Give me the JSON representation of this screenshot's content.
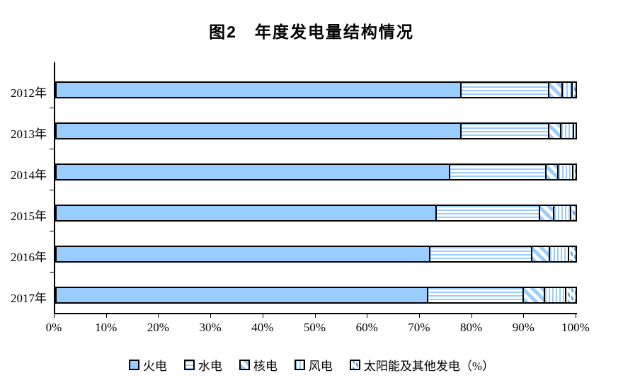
{
  "title": "图2　年度发电量结构情况",
  "colors": {
    "bar_blue": "#99CCFF",
    "border": "#000000",
    "background": "#FFFFFF"
  },
  "chart_data": {
    "type": "bar",
    "orientation": "horizontal",
    "stacked": true,
    "title": "图2　年度发电量结构情况",
    "xlabel": "",
    "ylabel": "",
    "xlim": [
      0,
      100
    ],
    "grid": false,
    "legend_position": "bottom",
    "categories": [
      "2012年",
      "2013年",
      "2014年",
      "2015年",
      "2016年",
      "2017年"
    ],
    "x_ticks": [
      "0%",
      "10%",
      "20%",
      "30%",
      "40%",
      "50%",
      "60%",
      "70%",
      "80%",
      "90%",
      "100%"
    ],
    "series": [
      {
        "name": "火电",
        "pattern": "solid",
        "values": [
          78.0,
          78.0,
          75.8,
          73.3,
          72.0,
          71.6
        ]
      },
      {
        "name": "水电",
        "pattern": "hstripe",
        "values": [
          17.0,
          16.9,
          18.6,
          19.9,
          19.7,
          18.4
        ]
      },
      {
        "name": "核电",
        "pattern": "diag",
        "values": [
          2.5,
          2.4,
          2.3,
          2.7,
          3.4,
          4.1
        ]
      },
      {
        "name": "风电",
        "pattern": "vstripe",
        "values": [
          2.0,
          2.4,
          2.9,
          3.3,
          3.7,
          4.1
        ]
      },
      {
        "name": "太阳能及其他发电（%）",
        "pattern": "diagdash",
        "values": [
          0.5,
          0.3,
          0.4,
          0.8,
          1.2,
          1.8
        ]
      }
    ]
  }
}
